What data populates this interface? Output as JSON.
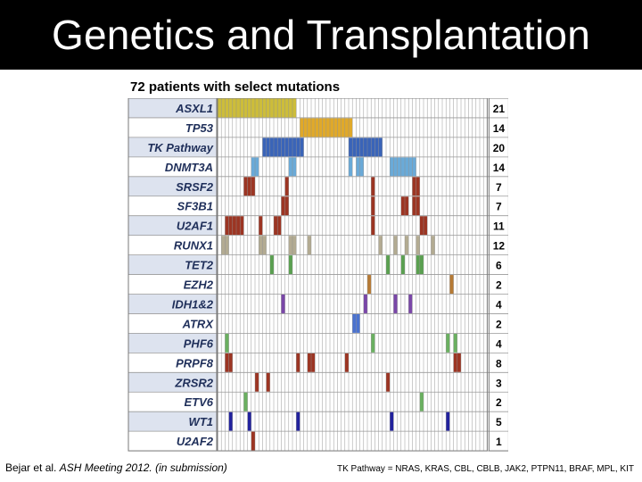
{
  "title": "Genetics and Transplantation",
  "subtitle": "72 patients with select mutations",
  "footer": {
    "citation_prefix": "Bejar et al. ",
    "citation_journal": "ASH Meeting 2012.",
    "citation_suffix": " (in submission)",
    "note": "TK Pathway = NRAS, KRAS, CBL, CBLB, JAK2, PTPN11, BRAF, MPL, KIT"
  },
  "chart_data": {
    "type": "heatmap",
    "patients": 72,
    "grid": true,
    "rows": [
      {
        "gene": "ASXL1",
        "count": 21,
        "color": "#cdbd3a",
        "columns": [
          1,
          2,
          3,
          4,
          5,
          6,
          7,
          8,
          9,
          10,
          11,
          12,
          13,
          14,
          15,
          16,
          17,
          18,
          19,
          20,
          21
        ]
      },
      {
        "gene": "TP53",
        "count": 14,
        "color": "#e0a92a",
        "columns": [
          23,
          24,
          25,
          26,
          27,
          28,
          29,
          30,
          31,
          32,
          33,
          34,
          35,
          36
        ]
      },
      {
        "gene": "TK Pathway",
        "count": 20,
        "color": "#3a64b8",
        "columns": [
          13,
          14,
          15,
          16,
          17,
          18,
          19,
          20,
          21,
          22,
          23,
          36,
          37,
          38,
          39,
          40,
          41,
          42,
          43,
          44
        ]
      },
      {
        "gene": "DNMT3A",
        "count": 14,
        "color": "#6aaad8",
        "columns": [
          10,
          11,
          20,
          21,
          36,
          38,
          39,
          47,
          48,
          49,
          50,
          51,
          52,
          53
        ]
      },
      {
        "gene": "SRSF2",
        "count": 7,
        "color": "#9c3523",
        "columns": [
          8,
          9,
          10,
          19,
          42,
          53,
          54
        ]
      },
      {
        "gene": "SF3B1",
        "count": 7,
        "color": "#9c3523",
        "columns": [
          18,
          19,
          42,
          50,
          51,
          53,
          54
        ]
      },
      {
        "gene": "U2AF1",
        "count": 11,
        "color": "#9c3523",
        "columns": [
          3,
          4,
          5,
          6,
          7,
          12,
          16,
          17,
          42,
          55,
          56
        ]
      },
      {
        "gene": "RUNX1",
        "count": 12,
        "color": "#b3ab92",
        "columns": [
          2,
          3,
          12,
          13,
          20,
          21,
          25,
          44,
          48,
          51,
          54,
          58
        ]
      },
      {
        "gene": "TET2",
        "count": 6,
        "color": "#5aa050",
        "columns": [
          15,
          20,
          46,
          50,
          54,
          55
        ]
      },
      {
        "gene": "EZH2",
        "count": 2,
        "color": "#b67a35",
        "columns": [
          41,
          63
        ]
      },
      {
        "gene": "IDH1&2",
        "count": 4,
        "color": "#7a47a8",
        "columns": [
          18,
          40,
          48,
          52
        ]
      },
      {
        "gene": "ATRX",
        "count": 2,
        "color": "#4a72d0",
        "columns": [
          37,
          38
        ]
      },
      {
        "gene": "PHF6",
        "count": 4,
        "color": "#6ab060",
        "columns": [
          3,
          42,
          62,
          64
        ]
      },
      {
        "gene": "PRPF8",
        "count": 8,
        "color": "#9c3523",
        "columns": [
          3,
          4,
          22,
          25,
          26,
          35,
          64,
          65
        ]
      },
      {
        "gene": "ZRSR2",
        "count": 3,
        "color": "#9c3523",
        "columns": [
          11,
          14,
          46
        ]
      },
      {
        "gene": "ETV6",
        "count": 2,
        "color": "#6ab060",
        "columns": [
          8,
          55
        ]
      },
      {
        "gene": "WT1",
        "count": 5,
        "color": "#22229e",
        "columns": [
          4,
          9,
          22,
          47,
          62
        ]
      },
      {
        "gene": "U2AF2",
        "count": 1,
        "color": "#9c3523",
        "columns": [
          10
        ]
      }
    ]
  }
}
